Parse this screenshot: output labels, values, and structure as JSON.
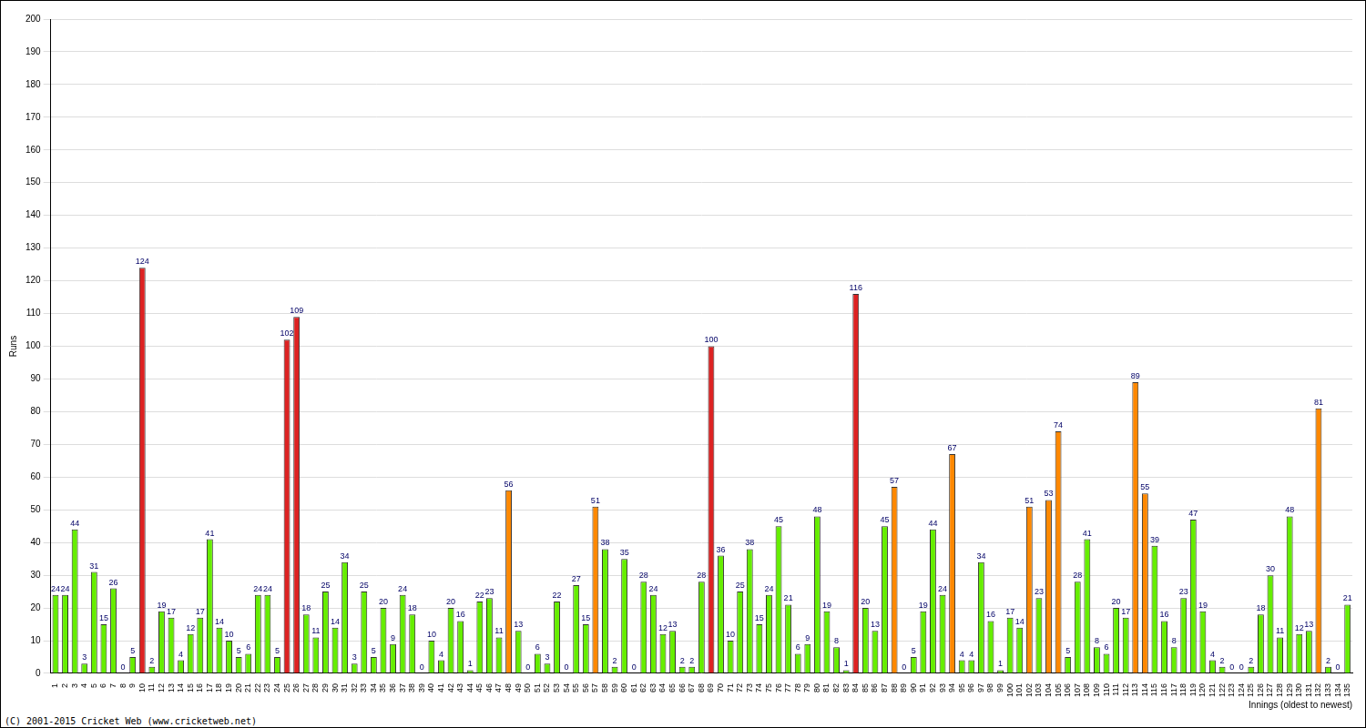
{
  "chart_data": {
    "type": "bar",
    "x_label": "Innings (oldest to newest)",
    "y_label": "Runs",
    "annotations": [
      "(C) 2001-2015 Cricket Web (www.cricketweb.net)"
    ],
    "categories": [
      "1",
      "2",
      "3",
      "4",
      "5",
      "6",
      "7",
      "8",
      "9",
      "10",
      "11",
      "12",
      "13",
      "14",
      "15",
      "16",
      "17",
      "18",
      "19",
      "20",
      "21",
      "22",
      "23",
      "24",
      "25",
      "26",
      "27",
      "28",
      "29",
      "30",
      "31",
      "32",
      "33",
      "34",
      "35",
      "36",
      "37",
      "38",
      "39",
      "40",
      "41",
      "42",
      "43",
      "44",
      "45",
      "46",
      "47",
      "48",
      "49",
      "50",
      "51",
      "52",
      "53",
      "54",
      "55",
      "56",
      "57",
      "58",
      "59",
      "60",
      "61",
      "62",
      "63",
      "64",
      "65",
      "66",
      "67",
      "68",
      "69",
      "70",
      "71",
      "72",
      "73",
      "74",
      "75",
      "76",
      "77",
      "78",
      "79",
      "80",
      "81",
      "82",
      "83",
      "84",
      "85",
      "86",
      "87",
      "88",
      "89",
      "90",
      "91",
      "92",
      "93",
      "94",
      "95",
      "96",
      "97",
      "98",
      "99",
      "100",
      "101",
      "102",
      "103",
      "104",
      "105",
      "106",
      "107",
      "108",
      "109",
      "110",
      "111",
      "112",
      "113",
      "114",
      "115",
      "116",
      "117",
      "118",
      "119",
      "120",
      "121",
      "122",
      "123",
      "124",
      "125",
      "126",
      "127",
      "128",
      "129",
      "130",
      "131",
      "132",
      "133",
      "134",
      "135"
    ],
    "values": [
      24,
      24,
      44,
      3,
      31,
      15,
      26,
      0,
      5,
      124,
      2,
      19,
      17,
      4,
      12,
      17,
      41,
      14,
      10,
      5,
      6,
      24,
      24,
      5,
      102,
      109,
      18,
      11,
      25,
      14,
      34,
      3,
      25,
      5,
      20,
      9,
      24,
      18,
      0,
      10,
      4,
      20,
      16,
      1,
      22,
      23,
      11,
      56,
      13,
      0,
      6,
      3,
      22,
      0,
      27,
      15,
      51,
      38,
      2,
      35,
      0,
      28,
      24,
      12,
      13,
      2,
      2,
      28,
      100,
      36,
      10,
      25,
      38,
      15,
      24,
      45,
      21,
      6,
      9,
      48,
      19,
      8,
      1,
      116,
      20,
      13,
      45,
      57,
      0,
      5,
      19,
      44,
      24,
      67,
      4,
      4,
      34,
      16,
      1,
      17,
      14,
      51,
      23,
      53,
      74,
      5,
      28,
      41,
      8,
      6,
      20,
      17,
      89,
      55,
      39,
      16,
      8,
      23,
      47,
      19,
      4,
      2,
      0,
      0,
      2,
      18,
      30,
      11,
      48,
      12,
      13,
      81,
      2,
      0,
      21
    ],
    "colors": [
      "#66ee00",
      "#66ee00",
      "#66ee00",
      "#66ee00",
      "#66ee00",
      "#66ee00",
      "#66ee00",
      "#66ee00",
      "#66ee00",
      "#dd2222",
      "#66ee00",
      "#66ee00",
      "#66ee00",
      "#66ee00",
      "#66ee00",
      "#66ee00",
      "#66ee00",
      "#66ee00",
      "#66ee00",
      "#66ee00",
      "#66ee00",
      "#66ee00",
      "#66ee00",
      "#66ee00",
      "#dd2222",
      "#dd2222",
      "#66ee00",
      "#66ee00",
      "#66ee00",
      "#66ee00",
      "#66ee00",
      "#66ee00",
      "#66ee00",
      "#66ee00",
      "#66ee00",
      "#66ee00",
      "#66ee00",
      "#66ee00",
      "#66ee00",
      "#66ee00",
      "#66ee00",
      "#66ee00",
      "#66ee00",
      "#66ee00",
      "#66ee00",
      "#66ee00",
      "#66ee00",
      "#ff8800",
      "#66ee00",
      "#66ee00",
      "#66ee00",
      "#66ee00",
      "#66ee00",
      "#66ee00",
      "#66ee00",
      "#66ee00",
      "#ff8800",
      "#66ee00",
      "#66ee00",
      "#66ee00",
      "#66ee00",
      "#66ee00",
      "#66ee00",
      "#66ee00",
      "#66ee00",
      "#66ee00",
      "#66ee00",
      "#66ee00",
      "#dd2222",
      "#66ee00",
      "#66ee00",
      "#66ee00",
      "#66ee00",
      "#66ee00",
      "#66ee00",
      "#66ee00",
      "#66ee00",
      "#66ee00",
      "#66ee00",
      "#66ee00",
      "#66ee00",
      "#66ee00",
      "#66ee00",
      "#dd2222",
      "#66ee00",
      "#66ee00",
      "#66ee00",
      "#ff8800",
      "#66ee00",
      "#66ee00",
      "#66ee00",
      "#66ee00",
      "#66ee00",
      "#ff8800",
      "#66ee00",
      "#66ee00",
      "#66ee00",
      "#66ee00",
      "#66ee00",
      "#66ee00",
      "#66ee00",
      "#ff8800",
      "#66ee00",
      "#ff8800",
      "#ff8800",
      "#66ee00",
      "#66ee00",
      "#66ee00",
      "#66ee00",
      "#66ee00",
      "#66ee00",
      "#66ee00",
      "#ff8800",
      "#ff8800",
      "#66ee00",
      "#66ee00",
      "#66ee00",
      "#66ee00",
      "#66ee00",
      "#66ee00",
      "#66ee00",
      "#66ee00",
      "#66ee00",
      "#66ee00",
      "#66ee00",
      "#66ee00",
      "#66ee00",
      "#66ee00",
      "#66ee00",
      "#66ee00",
      "#66ee00",
      "#ff8800",
      "#66ee00",
      "#66ee00",
      "#66ee00"
    ],
    "ylim": [
      0,
      200
    ],
    "yticks": [
      0,
      10,
      20,
      30,
      40,
      50,
      60,
      70,
      80,
      90,
      100,
      110,
      120,
      130,
      140,
      150,
      160,
      170,
      180,
      190,
      200
    ],
    "grid": true,
    "data_labels": true,
    "legend": "none"
  }
}
